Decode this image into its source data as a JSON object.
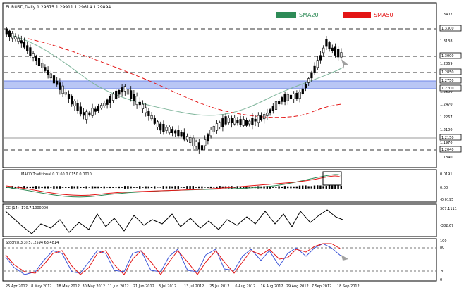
{
  "symbol_header": {
    "text": "EURUSD,Daily  1.29675 1.29911 1.29614 1.29894"
  },
  "legend": {
    "sma20": {
      "label": "SMA20",
      "color": "#2e8b57"
    },
    "sma50": {
      "label": "SMA50",
      "color": "#e31515"
    }
  },
  "price_axis": {
    "labels": [
      "1.3407",
      "1.3138",
      "1.2869",
      "1.2600",
      "1.2470",
      "1.2267",
      "1.2100",
      "1.1970",
      "1.1840"
    ],
    "boxed_labels": [
      "1.3300",
      "1.3000",
      "1.2850",
      "1.2750",
      "1.2700",
      "1.2150",
      "1.2040"
    ]
  },
  "macd": {
    "header": "MACD Traditional 0.0160 0.0150 0.0010",
    "labels": [
      "0.0191",
      "0.00",
      "-0.0195"
    ]
  },
  "cci": {
    "header": "CCI(14) -170.7.1000000",
    "labels": [
      "307.1111",
      "-382.67"
    ]
  },
  "stoch": {
    "header": "Stoch(8,3,3) 57.2594 63.4814",
    "labels": [
      "100",
      "80",
      "20",
      "0"
    ]
  },
  "date_axis": {
    "labels": [
      "25 Apr 2012",
      "8 May 2012",
      "18 May 2012",
      "30 May 2012",
      "11 Jun 2012",
      "21 Jun 2012",
      "3 Jul 2012",
      "13 Jul 2012",
      "25 Jul 2012",
      "6 Aug 2012",
      "16 Aug 2012",
      "29 Aug 2012",
      "7 Sep 2012",
      "18 Sep 2012"
    ]
  },
  "colors": {
    "candle_up": "#ffffff",
    "candle_down": "#000000",
    "zone": "#6f86e8",
    "arrow": "#a0a0a0",
    "macd_signal": "#e31515",
    "macd_line": "#2e8b57",
    "stoch_k": "#3c55d8",
    "stoch_d": "#e31515"
  },
  "chart_data": {
    "type": "candlestick",
    "series_shape": "EURUSD daily downtrend to late July low near 1.2040, then rally to ~1.3150 in mid September",
    "key_levels": [
      1.33,
      1.3,
      1.285,
      1.275,
      1.27,
      1.215,
      1.204
    ]
  }
}
